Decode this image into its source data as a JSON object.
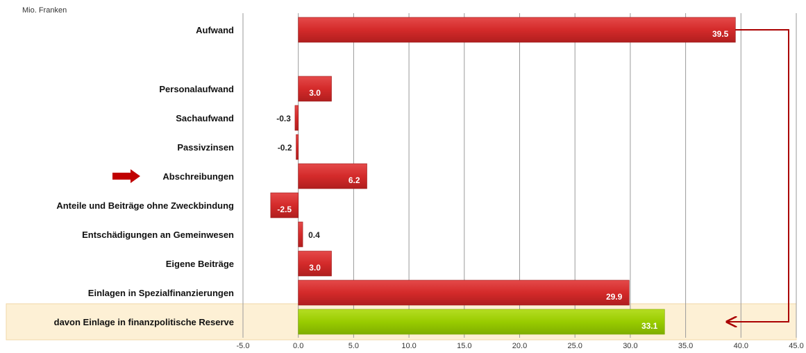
{
  "chart_data": {
    "type": "bar",
    "orientation": "horizontal",
    "unit_label": "Mio. Franken",
    "categories": [
      "Aufwand",
      "Personalaufwand",
      "Sachaufwand",
      "Passivzinsen",
      "Abschreibungen",
      "Anteile und Beiträge ohne Zweckbindung",
      "Entschädigungen an Gemeinwesen",
      "Eigene Beiträge",
      "Einlagen in Spezialfinanzierungen",
      "davon Einlage in finanzpolitische Reserve"
    ],
    "values": [
      39.5,
      3.0,
      -0.3,
      -0.2,
      6.2,
      -2.5,
      0.4,
      3.0,
      29.9,
      33.1
    ],
    "value_labels": [
      "39.5",
      "3.0",
      "-0.3",
      "-0.2",
      "6.2",
      "-2.5",
      "0.4",
      "3.0",
      "29.9",
      "33.1"
    ],
    "xlim": [
      -5,
      45
    ],
    "x_ticks": [
      -5,
      0,
      5,
      10,
      15,
      20,
      25,
      30,
      35,
      40,
      45
    ],
    "x_tick_labels": [
      "-5.0",
      "0.0",
      "5.0",
      "10.0",
      "15.0",
      "20.0",
      "25.0",
      "30.0",
      "35.0",
      "40.0",
      "45.0"
    ],
    "grid": true,
    "colors": {
      "bar": "#d42a2a",
      "bar_dark": "#b01e1e",
      "highlight_bar": "#99cc00",
      "highlight_band": "#fdf0d5",
      "highlight_border": "#f1d7a8",
      "arrow": "#aa0000",
      "grid": "#9a9a9a"
    },
    "highlighted_category": "Abschreibungen",
    "highlight_row_category": "davon Einlage in finanzpolitische Reserve",
    "connector_from": "Aufwand",
    "connector_to": "davon Einlage in finanzpolitische Reserve"
  }
}
